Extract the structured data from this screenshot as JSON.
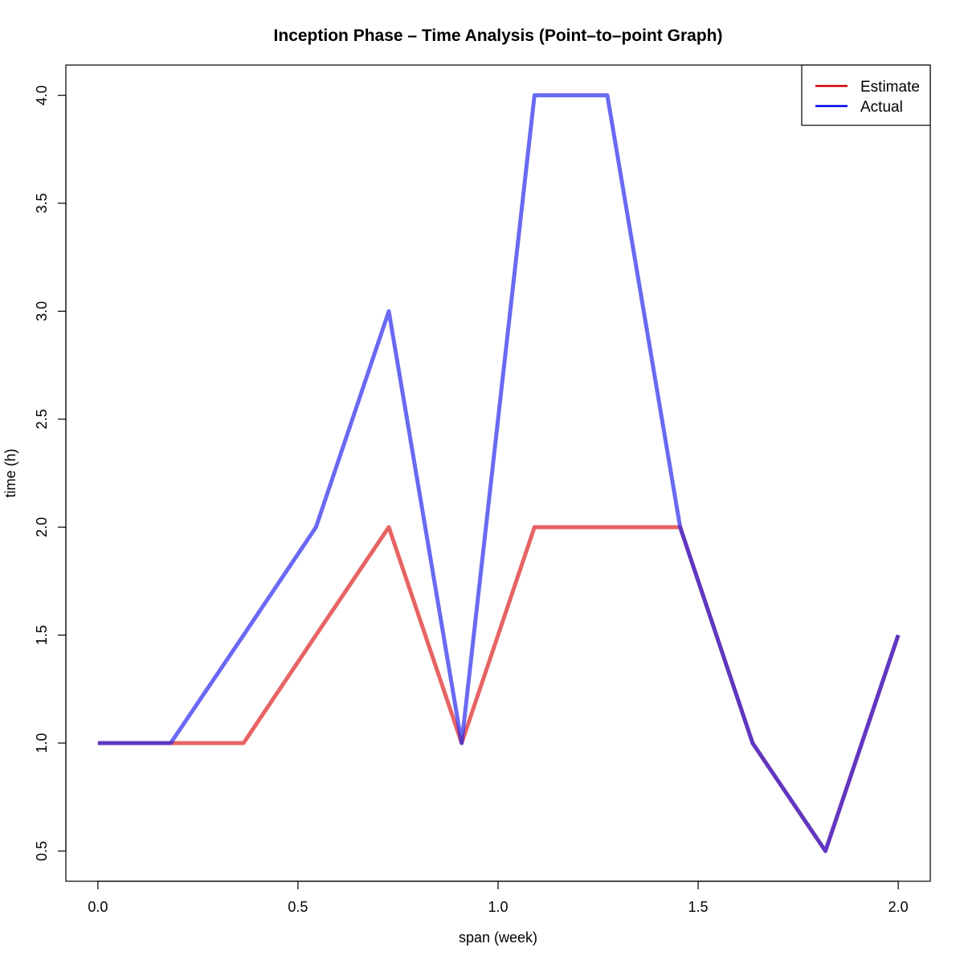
{
  "chart_data": {
    "type": "line",
    "title": "Inception Phase – Time Analysis (Point–to–point Graph)",
    "xlabel": "span (week)",
    "ylabel": "time (h)",
    "xlim": [
      -0.08,
      2.08
    ],
    "ylim": [
      0.36,
      4.14
    ],
    "xticks": [
      0.0,
      0.5,
      1.0,
      1.5,
      2.0
    ],
    "xtick_labels": [
      "0.0",
      "0.5",
      "1.0",
      "1.5",
      "2.0"
    ],
    "yticks": [
      0.5,
      1.0,
      1.5,
      2.0,
      2.5,
      3.0,
      3.5,
      4.0
    ],
    "ytick_labels": [
      "0.5",
      "1.0",
      "1.5",
      "2.0",
      "2.5",
      "3.0",
      "3.5",
      "4.0"
    ],
    "grid": false,
    "legend_position": "top-right",
    "x": [
      0.0,
      0.182,
      0.364,
      0.545,
      0.727,
      0.909,
      1.091,
      1.273,
      1.455,
      1.636,
      1.818,
      2.0
    ],
    "series": [
      {
        "name": "Estimate",
        "legend_color": "#cc0000",
        "line_color": "rgba(221, 34, 34, 0.7)",
        "values": [
          1.0,
          1.0,
          1.0,
          1.5,
          2.0,
          1.0,
          2.0,
          2.0,
          2.0,
          1.0,
          0.5,
          1.5
        ]
      },
      {
        "name": "Actual",
        "legend_color": "#0000ee",
        "line_color": "rgba(34, 34, 238, 0.68)",
        "values": [
          1.0,
          1.0,
          1.5,
          2.0,
          3.0,
          1.0,
          4.0,
          4.0,
          2.0,
          1.0,
          0.5,
          1.5
        ]
      }
    ]
  }
}
